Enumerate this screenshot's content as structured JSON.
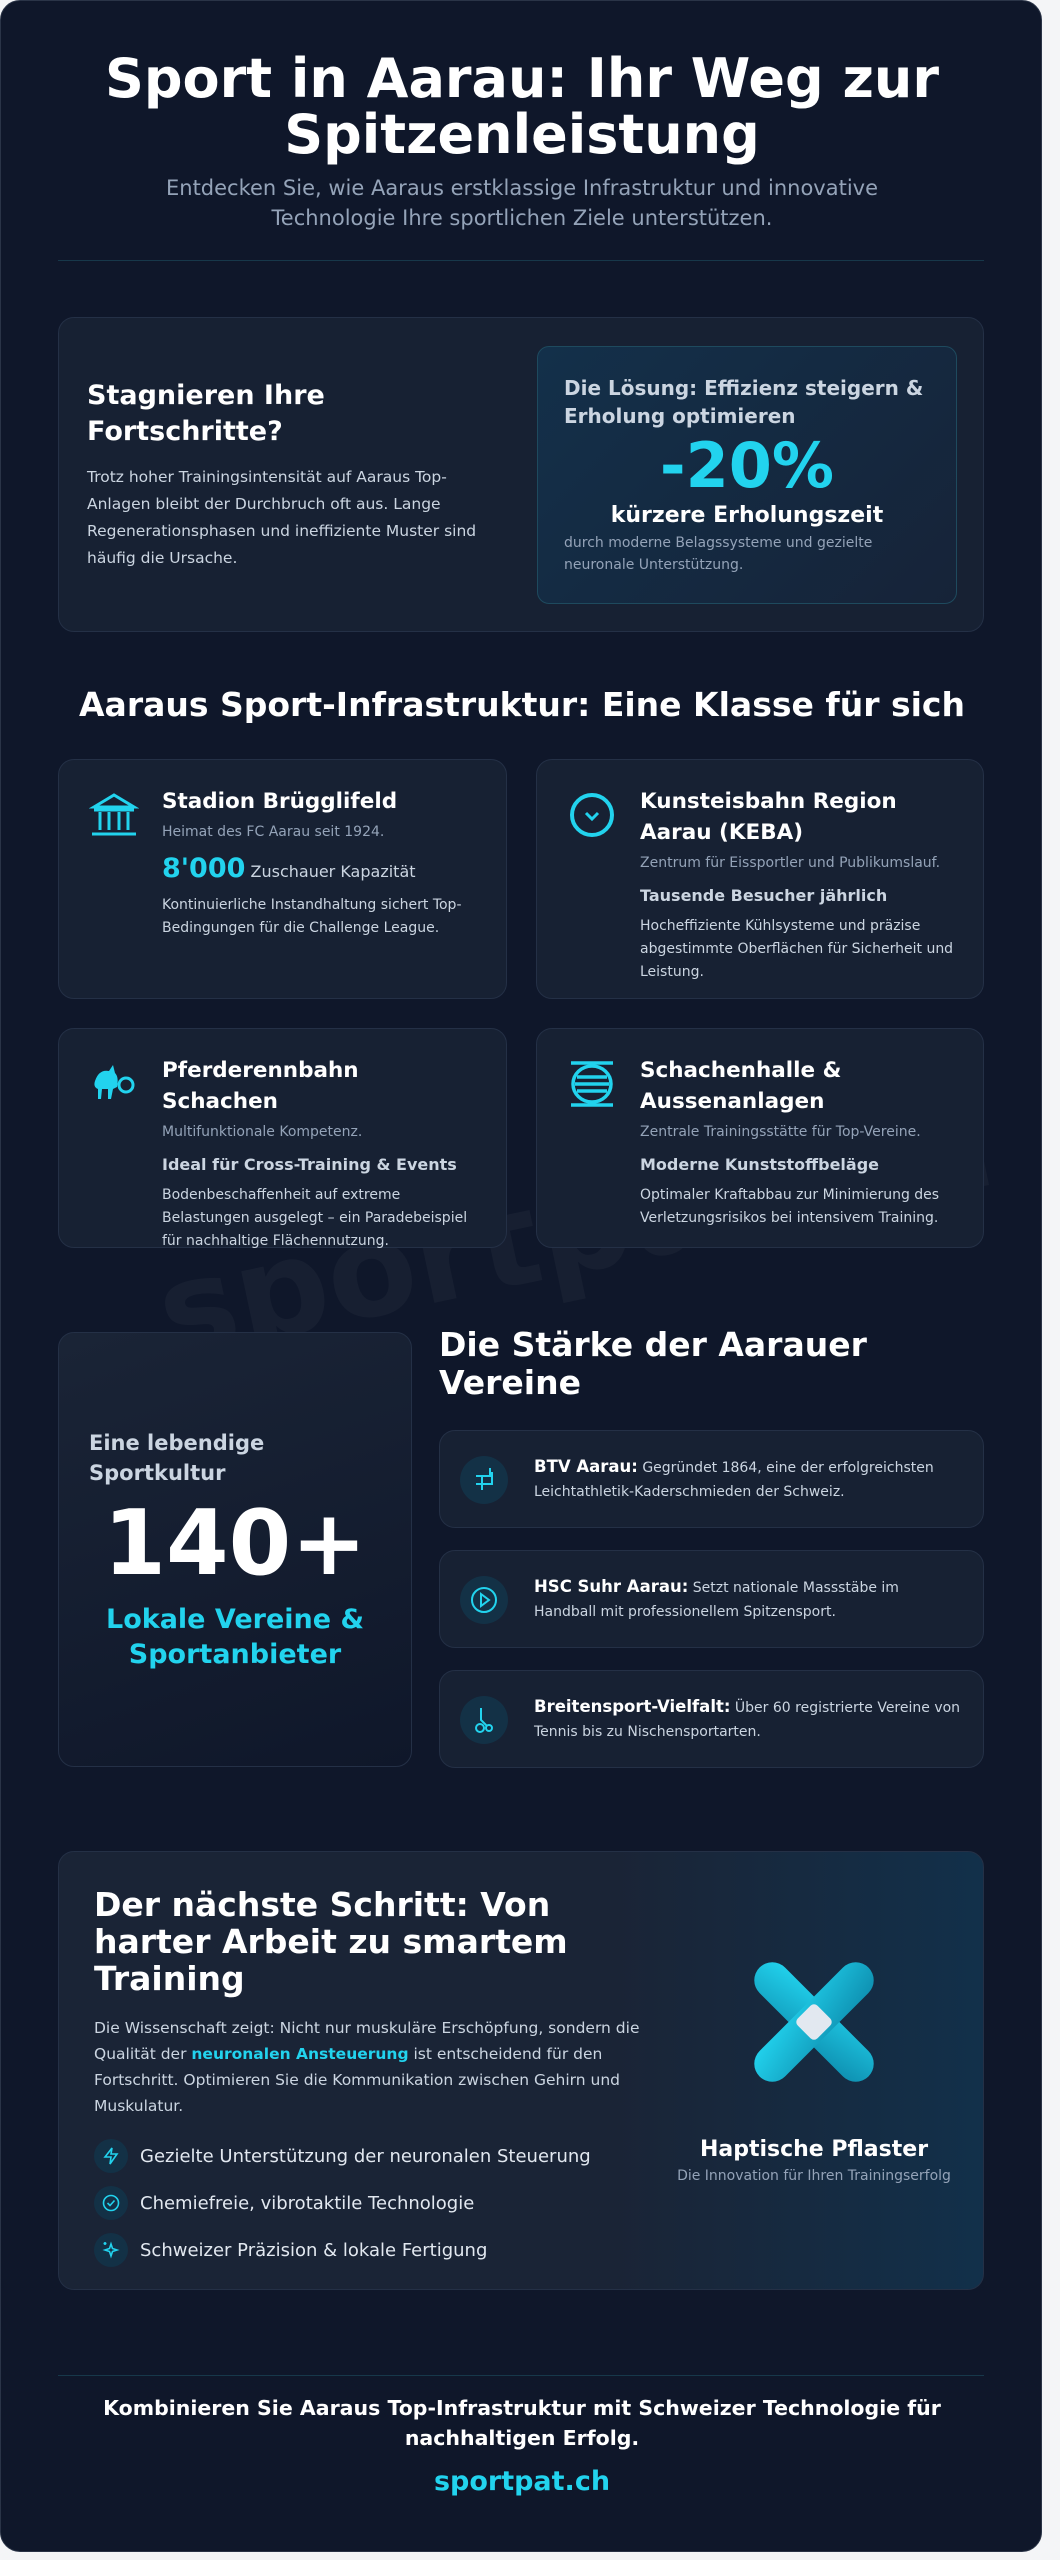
{
  "header": {
    "title": "Sport in Aarau: Ihr Weg zur Spitzenleistung",
    "subtitle": "Entdecken Sie, wie Aaraus erstklassige Infrastruktur und innovative Technologie Ihre sportlichen Ziele unterstützen."
  },
  "watermark": "sportpat.ch",
  "problem": {
    "title": "Stagnieren Ihre Fortschritte?",
    "text": "Trotz hoher Trainingsintensität auf Aaraus Top-Anlagen bleibt der Durchbruch oft aus. Lange Regenerationsphasen und ineffiziente Muster sind häufig die Ursache.",
    "solution": {
      "title": "Die Lösung: Effizienz steigern & Erholung optimieren",
      "value": "-20%",
      "label": "kürzere Erholungszeit",
      "note": "durch moderne Belagssysteme und gezielte neuronale Unterstützung."
    }
  },
  "infrastructure": {
    "title": "Aaraus Sport-Infrastruktur: Eine Klasse für sich",
    "items": [
      {
        "icon": "stadium-icon",
        "name": "Stadion Brügglifeld",
        "sub": "Heimat des FC Aarau seit 1924.",
        "number": "8'000",
        "unit": "Zuschauer Kapazität",
        "desc": "Kontinuierliche Instandhaltung sichert Top-Bedingungen für die Challenge League."
      },
      {
        "icon": "ice-rink-icon",
        "name": "Kunsteisbahn Region Aarau (KEBA)",
        "sub": "Zentrum für Eissportler und Publikumslauf.",
        "highlight": "Tausende Besucher jährlich",
        "desc": "Hocheffiziente Kühlsysteme und präzise abgestimmte Oberflächen für Sicherheit und Leistung."
      },
      {
        "icon": "horse-icon",
        "name": "Pferderennbahn Schachen",
        "sub": "Multifunktionale Kompetenz.",
        "highlight": "Ideal für Cross-Training & Events",
        "desc": "Bodenbeschaffenheit auf extreme Belastungen ausgelegt – ein Paradebeispiel für nachhaltige Flächennutzung."
      },
      {
        "icon": "hall-icon",
        "name": "Schachenhalle & Aussenanlagen",
        "sub": "Zentrale Trainingsstätte für Top-Vereine.",
        "highlight": "Moderne Kunststoffbeläge",
        "desc": "Optimaler Kraftabbau zur Minimierung des Verletzungsrisikos bei intensivem Training."
      }
    ]
  },
  "clubs": {
    "stat_label": "Eine lebendige Sportkultur",
    "stat_value": "140+",
    "stat_caption": "Lokale Vereine & Sportanbieter",
    "title": "Die Stärke der Aarauer Vereine",
    "items": [
      {
        "icon": "hurdle-icon",
        "name": "BTV Aarau:",
        "text": "Gegründet 1864, eine der erfolgreichsten Leichtathletik-Kaderschmieden der Schweiz."
      },
      {
        "icon": "play-circle-icon",
        "name": "HSC Suhr Aarau:",
        "text": "Setzt nationale Massstäbe im Handball mit professionellem Spitzensport."
      },
      {
        "icon": "bicycle-icon",
        "name": "Breitensport-Vielfalt:",
        "text": "Über 60 registrierte Vereine von Tennis bis zu Nischensportarten."
      }
    ]
  },
  "cta": {
    "title": "Der nächste Schritt: Von harter Arbeit zu smartem Training",
    "text_before": "Die Wissenschaft zeigt: Nicht nur muskuläre Erschöpfung, sondern die Qualität der ",
    "text_highlight": "neuronalen Ansteuerung",
    "text_after": " ist entscheidend für den Fortschritt. Optimieren Sie die Kommunikation zwischen Gehirn und Muskulatur.",
    "features": [
      {
        "icon": "bolt-icon",
        "label": "Gezielte Unterstützung der neuronalen Steuerung"
      },
      {
        "icon": "check-circle-icon",
        "label": "Chemiefreie, vibrotaktile Technologie"
      },
      {
        "icon": "sparkle-icon",
        "label": "Schweizer Präzision & lokale Fertigung"
      }
    ],
    "product_name": "Haptische Pflaster",
    "product_tagline": "Die Innovation für Ihren Trainingserfolg"
  },
  "footer": {
    "text": "Kombinieren Sie Aaraus Top-Infrastruktur mit Schweizer Technologie für nachhaltigen Erfolg.",
    "link": "sportpat.ch"
  },
  "colors": {
    "accent": "#22d3ee",
    "background": "#0f172a",
    "card": "#172133"
  }
}
